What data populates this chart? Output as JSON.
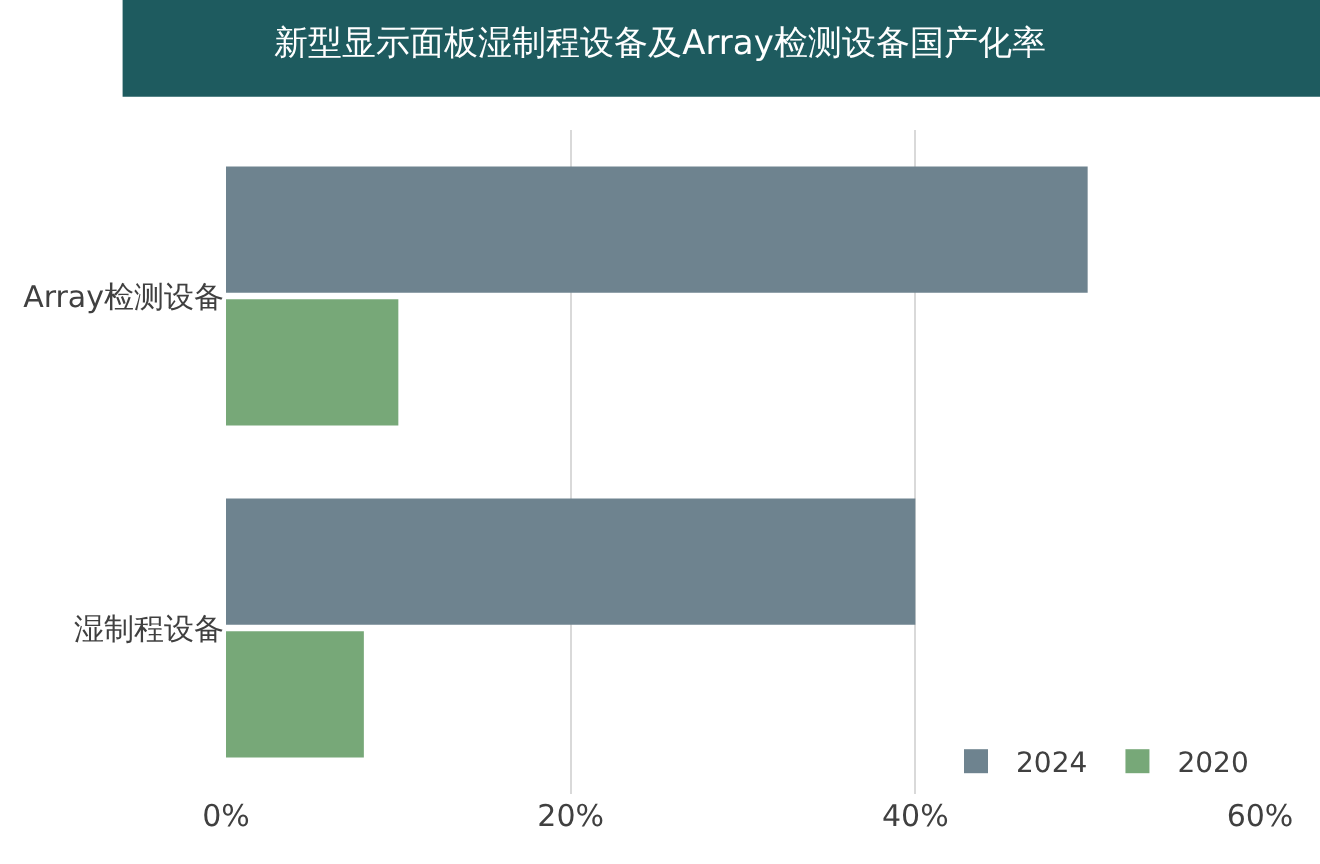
{
  "chart_data": {
    "type": "bar",
    "orientation": "horizontal",
    "title": "新型显示面板湿制程设备及Array检测设备国产化率",
    "categories": [
      "Array检测设备",
      "湿制程设备"
    ],
    "series": [
      {
        "name": "2024",
        "color": "#6e838f",
        "values": [
          50,
          40
        ]
      },
      {
        "name": "2020",
        "color": "#77a878",
        "values": [
          10,
          8
        ]
      }
    ],
    "xlim": [
      0,
      60
    ],
    "xticks": [
      {
        "value": 0,
        "label": "0%"
      },
      {
        "value": 20,
        "label": "20%"
      },
      {
        "value": 40,
        "label": "40%"
      },
      {
        "value": 60,
        "label": "60%"
      }
    ],
    "grid": "x",
    "legend": "bottom right"
  }
}
